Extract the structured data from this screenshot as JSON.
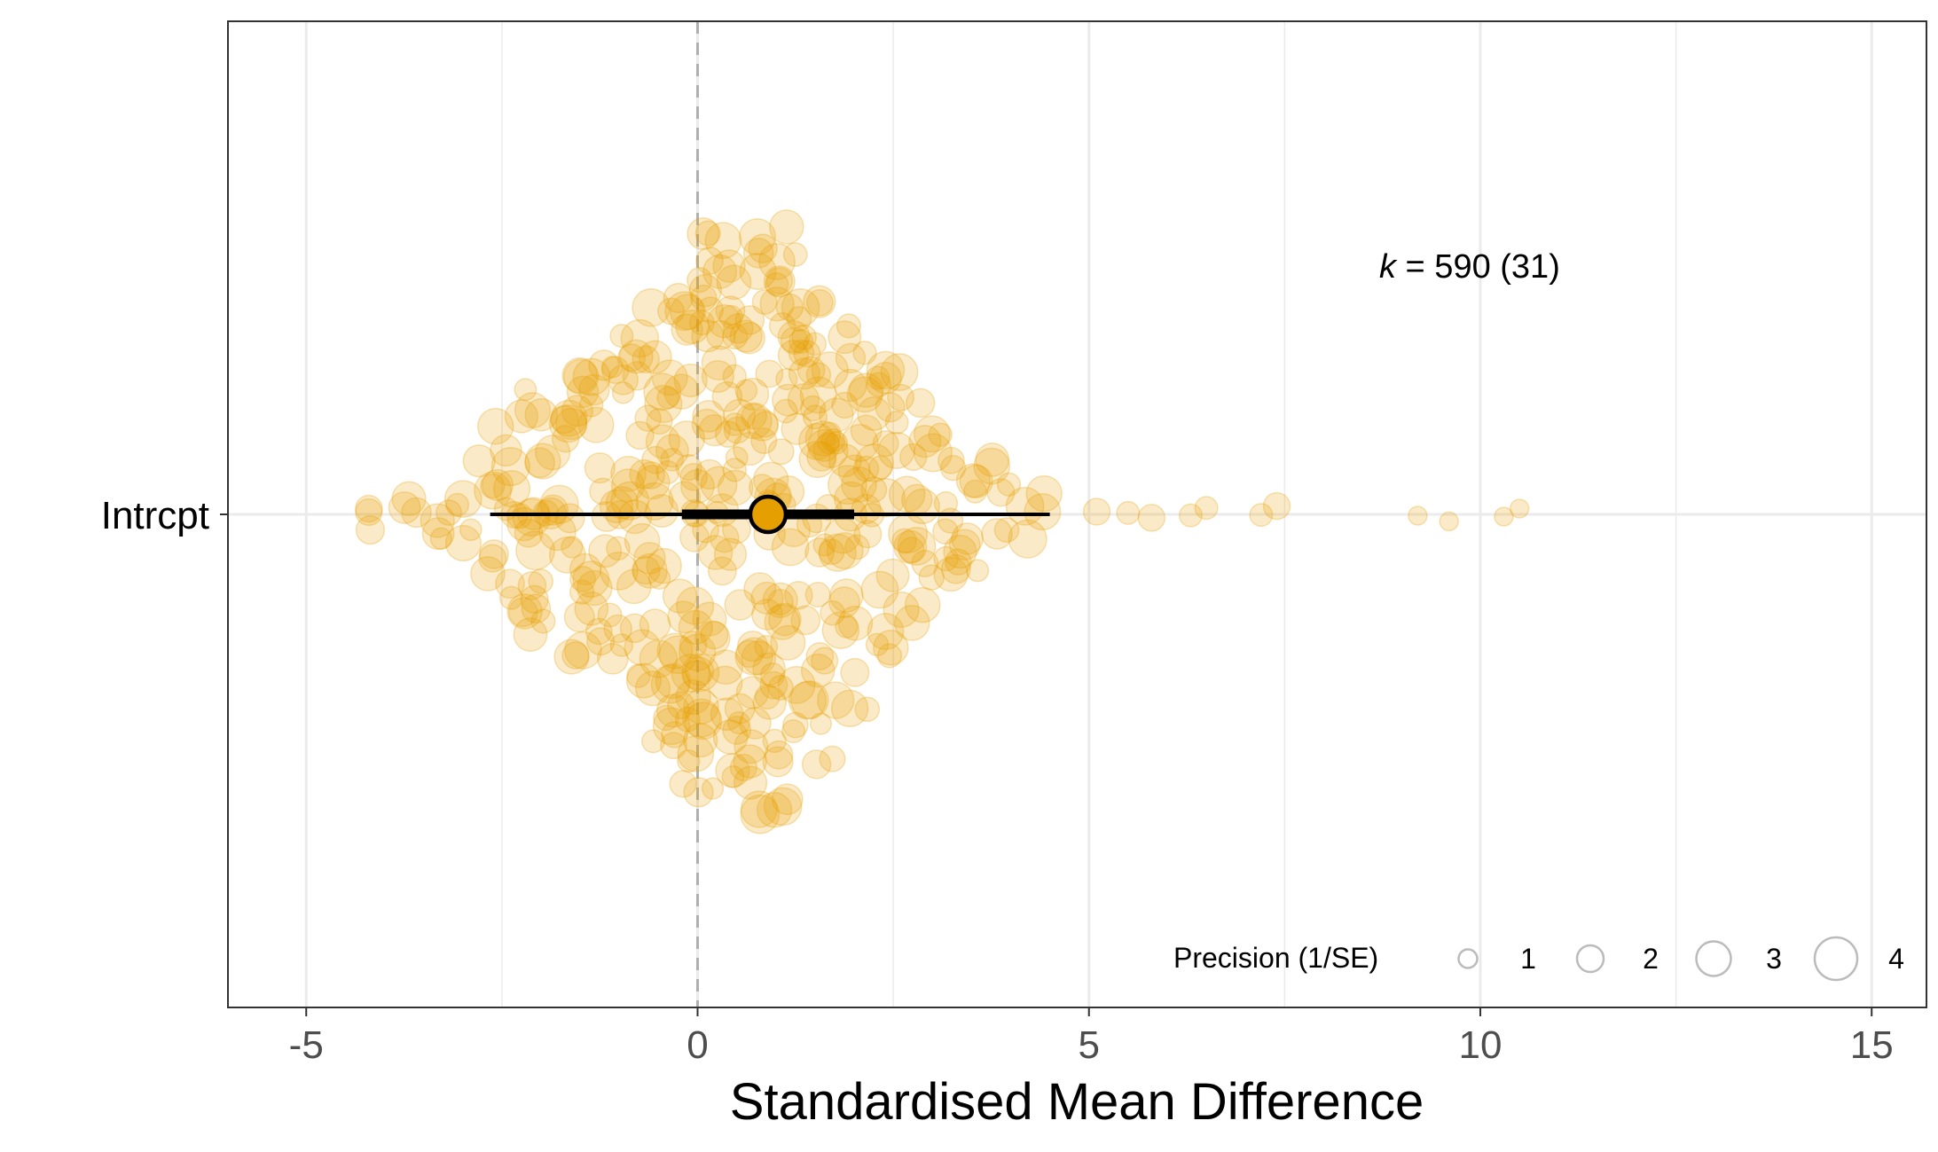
{
  "chart_data": {
    "type": "scatter",
    "title": "",
    "xlabel": "Standardised Mean Difference",
    "ylabel": "",
    "category": "Intrcpt",
    "xlim": [
      -6,
      15.7
    ],
    "x_ticks": [
      -5,
      0,
      5,
      10,
      15
    ],
    "x_tick_labels": [
      "-5",
      "0",
      "5",
      "10",
      "15"
    ],
    "reference_line": 0,
    "grid": true,
    "k_label": {
      "italic": "k",
      "rest": " = 590 (31)"
    },
    "estimate": {
      "value": 0.9,
      "ci": [
        -0.2,
        2.0
      ],
      "pi": [
        -2.65,
        4.5
      ]
    },
    "legend": {
      "title": "Precision (1/SE)",
      "entries": [
        "1",
        "2",
        "3",
        "4"
      ],
      "values": [
        1,
        2,
        3,
        4
      ],
      "position": "bottom-right"
    },
    "colors": {
      "points": "#E69F00",
      "estimate": "#E69F00",
      "interval": "#000000"
    },
    "outliers": [
      {
        "x": -4.2,
        "precision": 2
      },
      {
        "x": 5.1,
        "precision": 2
      },
      {
        "x": 5.5,
        "precision": 1.5
      },
      {
        "x": 5.8,
        "precision": 2
      },
      {
        "x": 6.3,
        "precision": 1.5
      },
      {
        "x": 6.5,
        "precision": 1.5
      },
      {
        "x": 7.2,
        "precision": 1.5
      },
      {
        "x": 7.4,
        "precision": 2
      },
      {
        "x": 9.2,
        "precision": 1
      },
      {
        "x": 9.6,
        "precision": 1
      },
      {
        "x": 10.3,
        "precision": 1
      },
      {
        "x": 10.5,
        "precision": 1
      }
    ],
    "density_bins": [
      {
        "x": -4.0,
        "n": 2
      },
      {
        "x": -3.6,
        "n": 3
      },
      {
        "x": -3.2,
        "n": 5
      },
      {
        "x": -2.8,
        "n": 9
      },
      {
        "x": -2.4,
        "n": 14
      },
      {
        "x": -2.0,
        "n": 19
      },
      {
        "x": -1.6,
        "n": 21
      },
      {
        "x": -1.2,
        "n": 22
      },
      {
        "x": -0.8,
        "n": 27
      },
      {
        "x": -0.4,
        "n": 36
      },
      {
        "x": 0.0,
        "n": 48
      },
      {
        "x": 0.4,
        "n": 42
      },
      {
        "x": 0.8,
        "n": 46
      },
      {
        "x": 1.2,
        "n": 45
      },
      {
        "x": 1.6,
        "n": 38
      },
      {
        "x": 2.0,
        "n": 30
      },
      {
        "x": 2.4,
        "n": 22
      },
      {
        "x": 2.8,
        "n": 17
      },
      {
        "x": 3.2,
        "n": 12
      },
      {
        "x": 3.6,
        "n": 8
      },
      {
        "x": 4.0,
        "n": 5
      },
      {
        "x": 4.4,
        "n": 3
      }
    ]
  }
}
